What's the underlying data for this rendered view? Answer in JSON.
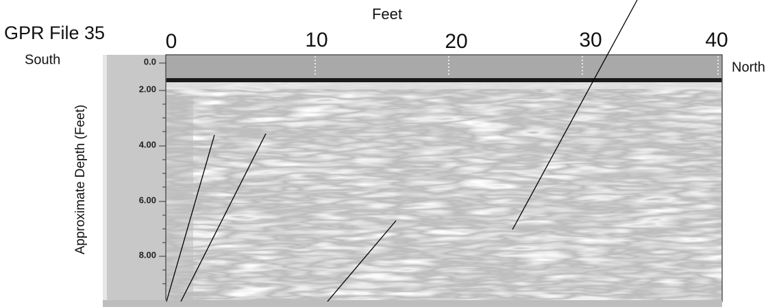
{
  "figure": {
    "title": "GPR File 35",
    "x_axis_label": "Feet",
    "x_tick_labels": [
      "0",
      "10",
      "20",
      "30",
      "40"
    ],
    "y_axis_label": "Approximate Depth (Feet)",
    "y_tick_labels": [
      "0.0",
      "2.00",
      "4.00",
      "6.00",
      "8.00"
    ],
    "left_label": "South",
    "right_label": "North"
  }
}
